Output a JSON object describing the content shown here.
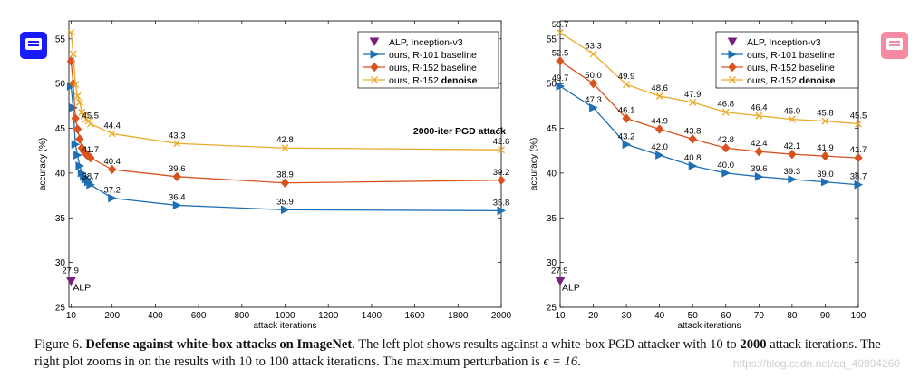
{
  "icons": {
    "left_note": {
      "name": "note-comment-icon",
      "color": "#1a1aff"
    },
    "right_note": {
      "name": "note-comment-icon",
      "color": "#f58aa0"
    }
  },
  "series_colors": {
    "alp": "#7a1f7f",
    "r101": "#1f6fb5",
    "r152": "#d9531e",
    "denoise": "#eaaa2a"
  },
  "chart_data": [
    {
      "type": "line",
      "xlabel": "attack iterations",
      "ylabel": "accuracy (%)",
      "xlim": [
        0,
        2000
      ],
      "ylim": [
        25,
        57
      ],
      "xticks": [
        10,
        200,
        400,
        600,
        800,
        1000,
        1200,
        1400,
        1600,
        1800,
        2000
      ],
      "yticks": [
        25,
        30,
        35,
        40,
        45,
        50,
        55
      ],
      "annotation": "2000-iter PGD attack",
      "legend": [
        "ALP, Inception-v3",
        "ours, R-101 baseline",
        "ours, R-152 baseline",
        "ours, R-152 denoise"
      ],
      "alp": {
        "name": "ALP, Inception-v3",
        "x": 10,
        "y": 27.9,
        "label": "27.9",
        "tag": "ALP"
      },
      "series": [
        {
          "name": "ours, R-101 baseline",
          "key": "r101",
          "marker": "triangle-right",
          "x": [
            10,
            20,
            30,
            40,
            50,
            60,
            70,
            80,
            90,
            100,
            200,
            500,
            1000,
            2000
          ],
          "y": [
            49.7,
            47.3,
            43.2,
            42.0,
            40.8,
            40.0,
            39.6,
            39.3,
            39.0,
            38.7,
            37.2,
            36.4,
            35.9,
            35.8
          ],
          "labels": [
            [
              "100",
              "38.7"
            ],
            [
              "200",
              "37.2"
            ],
            [
              "500",
              "36.4"
            ],
            [
              "1000",
              "35.9"
            ],
            [
              "2000",
              "35.8"
            ]
          ]
        },
        {
          "name": "ours, R-152 baseline",
          "key": "r152",
          "marker": "diamond",
          "x": [
            10,
            20,
            30,
            40,
            50,
            60,
            70,
            80,
            90,
            100,
            200,
            500,
            1000,
            2000
          ],
          "y": [
            52.5,
            50.0,
            46.1,
            44.9,
            43.8,
            42.8,
            42.4,
            42.1,
            41.9,
            41.7,
            40.4,
            39.6,
            38.9,
            39.2
          ],
          "labels": [
            [
              "100",
              "41.7"
            ],
            [
              "200",
              "40.4"
            ],
            [
              "500",
              "39.6"
            ],
            [
              "1000",
              "38.9"
            ],
            [
              "2000",
              "39.2"
            ]
          ]
        },
        {
          "name": "ours, R-152 denoise",
          "key": "denoise",
          "marker": "x",
          "x": [
            10,
            20,
            30,
            40,
            50,
            60,
            70,
            80,
            90,
            100,
            200,
            500,
            1000,
            2000
          ],
          "y": [
            55.7,
            53.3,
            49.9,
            48.6,
            47.9,
            46.8,
            46.4,
            46.0,
            45.8,
            45.5,
            44.4,
            43.3,
            42.8,
            42.6
          ],
          "labels": [
            [
              "100",
              "45.5"
            ],
            [
              "200",
              "44.4"
            ],
            [
              "500",
              "43.3"
            ],
            [
              "1000",
              "42.8"
            ],
            [
              "2000",
              "42.6"
            ]
          ]
        }
      ]
    },
    {
      "type": "line",
      "xlabel": "attack iterations",
      "ylabel": "accuracy (%)",
      "xlim": [
        10,
        100
      ],
      "ylim": [
        25,
        57
      ],
      "xticks": [
        10,
        20,
        30,
        40,
        50,
        60,
        70,
        80,
        90,
        100
      ],
      "yticks": [
        25,
        30,
        35,
        40,
        45,
        50,
        55
      ],
      "legend": [
        "ALP, Inception-v3",
        "ours, R-101 baseline",
        "ours, R-152 baseline",
        "ours, R-152 denoise"
      ],
      "alp": {
        "name": "ALP, Inception-v3",
        "x": 10,
        "y": 27.9,
        "label": "27.9",
        "tag": "ALP"
      },
      "series": [
        {
          "name": "ours, R-101 baseline",
          "key": "r101",
          "marker": "triangle-right",
          "x": [
            10,
            20,
            30,
            40,
            50,
            60,
            70,
            80,
            90,
            100
          ],
          "y": [
            49.7,
            47.3,
            43.2,
            42.0,
            40.8,
            40.0,
            39.6,
            39.3,
            39.0,
            38.7
          ],
          "labels": [
            [
              "10",
              "49.7"
            ],
            [
              "20",
              "47.3"
            ],
            [
              "30",
              "43.2"
            ],
            [
              "40",
              "42.0"
            ],
            [
              "50",
              "40.8"
            ],
            [
              "60",
              "40.0"
            ],
            [
              "70",
              "39.6"
            ],
            [
              "80",
              "39.3"
            ],
            [
              "90",
              "39.0"
            ],
            [
              "100",
              "38.7"
            ]
          ]
        },
        {
          "name": "ours, R-152 baseline",
          "key": "r152",
          "marker": "diamond",
          "x": [
            10,
            20,
            30,
            40,
            50,
            60,
            70,
            80,
            90,
            100
          ],
          "y": [
            52.5,
            50.0,
            46.1,
            44.9,
            43.8,
            42.8,
            42.4,
            42.1,
            41.9,
            41.7
          ],
          "labels": [
            [
              "10",
              "52.5"
            ],
            [
              "20",
              "50.0"
            ],
            [
              "30",
              "46.1"
            ],
            [
              "40",
              "44.9"
            ],
            [
              "50",
              "43.8"
            ],
            [
              "60",
              "42.8"
            ],
            [
              "70",
              "42.4"
            ],
            [
              "80",
              "42.1"
            ],
            [
              "90",
              "41.9"
            ],
            [
              "100",
              "41.7"
            ]
          ]
        },
        {
          "name": "ours, R-152 denoise",
          "key": "denoise",
          "marker": "x",
          "x": [
            10,
            20,
            30,
            40,
            50,
            60,
            70,
            80,
            90,
            100
          ],
          "y": [
            55.7,
            53.3,
            49.9,
            48.6,
            47.9,
            46.8,
            46.4,
            46.0,
            45.8,
            45.5
          ],
          "labels": [
            [
              "10",
              "55.7"
            ],
            [
              "20",
              "53.3"
            ],
            [
              "30",
              "49.9"
            ],
            [
              "40",
              "48.6"
            ],
            [
              "50",
              "47.9"
            ],
            [
              "60",
              "46.8"
            ],
            [
              "70",
              "46.4"
            ],
            [
              "80",
              "46.0"
            ],
            [
              "90",
              "45.8"
            ],
            [
              "100",
              "45.5"
            ]
          ]
        }
      ]
    }
  ],
  "caption": {
    "prefix": "Figure 6.",
    "bold_title": "Defense against white-box attacks on ImageNet",
    "text1": ". The left plot shows results against a white-box PGD attacker with 10 to ",
    "bold_num": "2000",
    "text2": " attack iterations. The right plot zooms in on the results with 10 to 100 attack iterations. The maximum perturbation is ",
    "math": "ϵ = 16",
    "end": "."
  },
  "watermark": "https://blog.csdn.net/qq_40994260"
}
